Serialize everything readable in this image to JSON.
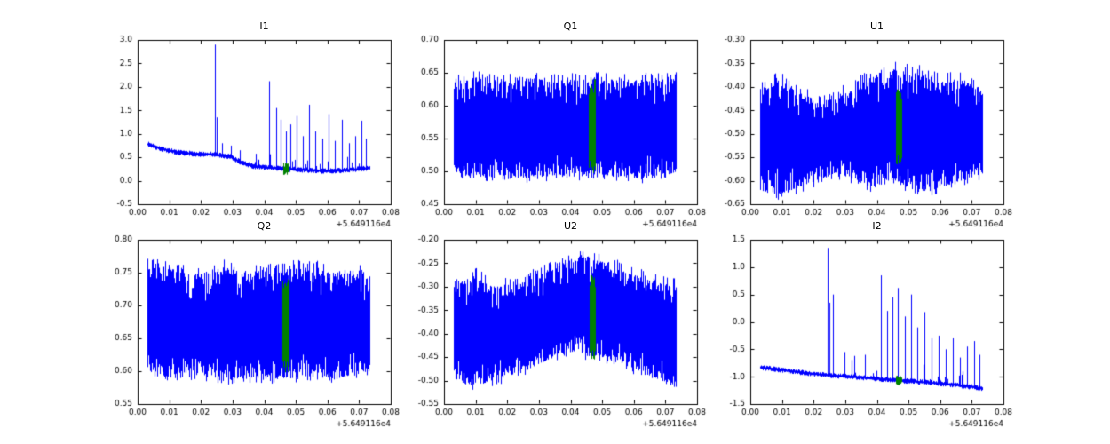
{
  "figure": {
    "background": "#ffffff",
    "line_color": "#0000ff",
    "highlight_color": "#008000",
    "x_offset_label": "+5.649116e4"
  },
  "chart_data": [
    {
      "id": "I1",
      "type": "line",
      "style": "spiky",
      "title": "I1",
      "ylabel": "I1",
      "xlim": [
        0,
        0.08
      ],
      "ylim": [
        -0.5,
        3.0
      ],
      "xticks": [
        0,
        0.01,
        0.02,
        0.03,
        0.04,
        0.05,
        0.06,
        0.07,
        0.08
      ],
      "yticks": [
        -0.5,
        0.0,
        0.5,
        1.0,
        1.5,
        2.0,
        2.5,
        3.0
      ],
      "xdec": 2,
      "ydec": 1,
      "x_offset": "+5.649116e4",
      "x_range": [
        0.003,
        0.0732
      ],
      "seed": 7,
      "baseline": [
        [
          0.003,
          0.78
        ],
        [
          0.008,
          0.67
        ],
        [
          0.013,
          0.6
        ],
        [
          0.019,
          0.57
        ],
        [
          0.024,
          0.56
        ],
        [
          0.029,
          0.52
        ],
        [
          0.033,
          0.38
        ],
        [
          0.037,
          0.3
        ],
        [
          0.043,
          0.27
        ],
        [
          0.05,
          0.24
        ],
        [
          0.058,
          0.21
        ],
        [
          0.065,
          0.22
        ],
        [
          0.0732,
          0.27
        ]
      ],
      "noise": 0.06,
      "comb_from": 0.036,
      "comb_prob": 0.12,
      "comb_amp": 0.25,
      "spikes": [
        [
          0.0243,
          2.9
        ],
        [
          0.0251,
          1.35
        ],
        [
          0.0268,
          0.8
        ],
        [
          0.0295,
          0.75
        ],
        [
          0.0322,
          0.65
        ],
        [
          0.0415,
          2.12
        ],
        [
          0.0437,
          1.55
        ],
        [
          0.0452,
          1.3
        ],
        [
          0.0468,
          1.05
        ],
        [
          0.0483,
          1.2
        ],
        [
          0.0502,
          1.38
        ],
        [
          0.0521,
          0.95
        ],
        [
          0.0543,
          1.62
        ],
        [
          0.0561,
          1.05
        ],
        [
          0.0585,
          0.9
        ],
        [
          0.0604,
          1.42
        ],
        [
          0.0622,
          0.85
        ],
        [
          0.0647,
          1.3
        ],
        [
          0.0668,
          0.8
        ],
        [
          0.0689,
          0.95
        ],
        [
          0.0706,
          1.28
        ],
        [
          0.0722,
          0.9
        ]
      ],
      "green": {
        "x": [
          0.0459,
          0.0478
        ],
        "half": 0.13
      }
    },
    {
      "id": "Q1",
      "type": "line",
      "style": "band",
      "title": "Q1",
      "ylabel": "Q1",
      "xlim": [
        0,
        0.08
      ],
      "ylim": [
        0.45,
        0.7
      ],
      "xticks": [
        0,
        0.01,
        0.02,
        0.03,
        0.04,
        0.05,
        0.06,
        0.07,
        0.08
      ],
      "yticks": [
        0.45,
        0.5,
        0.55,
        0.6,
        0.65,
        0.7
      ],
      "xdec": 2,
      "ydec": 2,
      "x_offset": "+5.649116e4",
      "x_range": [
        0.003,
        0.0732
      ],
      "seed": 11,
      "env_top": [
        [
          0.003,
          0.637
        ],
        [
          0.01,
          0.643
        ],
        [
          0.018,
          0.636
        ],
        [
          0.027,
          0.642
        ],
        [
          0.036,
          0.638
        ],
        [
          0.045,
          0.641
        ],
        [
          0.054,
          0.636
        ],
        [
          0.063,
          0.64
        ],
        [
          0.0732,
          0.641
        ]
      ],
      "env_bot": [
        [
          0.003,
          0.497
        ],
        [
          0.01,
          0.49
        ],
        [
          0.018,
          0.494
        ],
        [
          0.027,
          0.489
        ],
        [
          0.036,
          0.494
        ],
        [
          0.045,
          0.49
        ],
        [
          0.054,
          0.492
        ],
        [
          0.063,
          0.489
        ],
        [
          0.0732,
          0.497
        ]
      ],
      "tooth": 0.012,
      "green": {
        "x": [
          0.0458,
          0.0477
        ],
        "y": [
          0.497,
          0.643
        ]
      }
    },
    {
      "id": "U1",
      "type": "line",
      "style": "band",
      "title": "U1",
      "ylabel": "U1",
      "xlim": [
        0,
        0.08
      ],
      "ylim": [
        -0.65,
        -0.3
      ],
      "xticks": [
        0,
        0.01,
        0.02,
        0.03,
        0.04,
        0.05,
        0.06,
        0.07,
        0.08
      ],
      "yticks": [
        -0.65,
        -0.6,
        -0.55,
        -0.5,
        -0.45,
        -0.4,
        -0.35,
        -0.3
      ],
      "xdec": 2,
      "ydec": 2,
      "x_offset": "+5.649116e4",
      "x_range": [
        0.003,
        0.0732
      ],
      "seed": 13,
      "env_top": [
        [
          0.003,
          -0.405
        ],
        [
          0.009,
          -0.385
        ],
        [
          0.015,
          -0.41
        ],
        [
          0.021,
          -0.43
        ],
        [
          0.027,
          -0.425
        ],
        [
          0.033,
          -0.4
        ],
        [
          0.039,
          -0.375
        ],
        [
          0.046,
          -0.365
        ],
        [
          0.053,
          -0.37
        ],
        [
          0.06,
          -0.39
        ],
        [
          0.067,
          -0.385
        ],
        [
          0.0732,
          -0.415
        ]
      ],
      "env_bot": [
        [
          0.003,
          -0.615
        ],
        [
          0.009,
          -0.635
        ],
        [
          0.015,
          -0.615
        ],
        [
          0.021,
          -0.6
        ],
        [
          0.027,
          -0.585
        ],
        [
          0.033,
          -0.6
        ],
        [
          0.039,
          -0.615
        ],
        [
          0.046,
          -0.6
        ],
        [
          0.053,
          -0.625
        ],
        [
          0.06,
          -0.615
        ],
        [
          0.067,
          -0.6
        ],
        [
          0.0732,
          -0.585
        ]
      ],
      "tooth": 0.02,
      "green": {
        "x": [
          0.0459,
          0.0477
        ],
        "y": [
          -0.565,
          -0.405
        ]
      }
    },
    {
      "id": "Q2",
      "type": "line",
      "style": "band",
      "title": "Q2",
      "ylabel": "Q2",
      "xlim": [
        0,
        0.08
      ],
      "ylim": [
        0.55,
        0.8
      ],
      "xticks": [
        0,
        0.01,
        0.02,
        0.03,
        0.04,
        0.05,
        0.06,
        0.07,
        0.08
      ],
      "yticks": [
        0.55,
        0.6,
        0.65,
        0.7,
        0.75,
        0.8
      ],
      "xdec": 2,
      "ydec": 2,
      "x_offset": "+5.649116e4",
      "x_range": [
        0.003,
        0.0732
      ],
      "seed": 17,
      "env_top": [
        [
          0.003,
          0.762
        ],
        [
          0.01,
          0.755
        ],
        [
          0.018,
          0.748
        ],
        [
          0.027,
          0.758
        ],
        [
          0.036,
          0.75
        ],
        [
          0.045,
          0.755
        ],
        [
          0.054,
          0.76
        ],
        [
          0.063,
          0.748
        ],
        [
          0.0732,
          0.752
        ]
      ],
      "env_bot": [
        [
          0.003,
          0.603
        ],
        [
          0.01,
          0.588
        ],
        [
          0.018,
          0.594
        ],
        [
          0.027,
          0.585
        ],
        [
          0.036,
          0.59
        ],
        [
          0.045,
          0.587
        ],
        [
          0.054,
          0.592
        ],
        [
          0.063,
          0.588
        ],
        [
          0.0732,
          0.6
        ]
      ],
      "tooth": 0.012,
      "green": {
        "x": [
          0.0458,
          0.0477
        ],
        "y": [
          0.598,
          0.742
        ]
      }
    },
    {
      "id": "U2",
      "type": "line",
      "style": "band",
      "title": "U2",
      "ylabel": "U2",
      "xlim": [
        0,
        0.08
      ],
      "ylim": [
        -0.55,
        -0.2
      ],
      "xticks": [
        0,
        0.01,
        0.02,
        0.03,
        0.04,
        0.05,
        0.06,
        0.07,
        0.08
      ],
      "yticks": [
        -0.55,
        -0.5,
        -0.45,
        -0.4,
        -0.35,
        -0.3,
        -0.25,
        -0.2
      ],
      "xdec": 2,
      "ydec": 2,
      "x_offset": "+5.649116e4",
      "x_range": [
        0.003,
        0.0732
      ],
      "seed": 19,
      "env_top": [
        [
          0.003,
          -0.3
        ],
        [
          0.009,
          -0.275
        ],
        [
          0.015,
          -0.3
        ],
        [
          0.021,
          -0.295
        ],
        [
          0.027,
          -0.285
        ],
        [
          0.033,
          -0.265
        ],
        [
          0.039,
          -0.245
        ],
        [
          0.045,
          -0.232
        ],
        [
          0.051,
          -0.25
        ],
        [
          0.058,
          -0.27
        ],
        [
          0.065,
          -0.285
        ],
        [
          0.0732,
          -0.3
        ]
      ],
      "env_bot": [
        [
          0.003,
          -0.495
        ],
        [
          0.009,
          -0.515
        ],
        [
          0.015,
          -0.5
        ],
        [
          0.021,
          -0.49
        ],
        [
          0.027,
          -0.475
        ],
        [
          0.033,
          -0.455
        ],
        [
          0.039,
          -0.44
        ],
        [
          0.045,
          -0.445
        ],
        [
          0.051,
          -0.455
        ],
        [
          0.058,
          -0.47
        ],
        [
          0.065,
          -0.49
        ],
        [
          0.0732,
          -0.515
        ]
      ],
      "tooth": 0.02,
      "green": {
        "x": [
          0.0459,
          0.0477
        ],
        "y": [
          -0.455,
          -0.275
        ]
      }
    },
    {
      "id": "I2",
      "type": "line",
      "style": "spiky",
      "title": "I2",
      "ylabel": "I2",
      "xlim": [
        0,
        0.08
      ],
      "ylim": [
        -1.5,
        1.5
      ],
      "xticks": [
        0,
        0.01,
        0.02,
        0.03,
        0.04,
        0.05,
        0.06,
        0.07,
        0.08
      ],
      "yticks": [
        -1.5,
        -1.0,
        -0.5,
        0.0,
        0.5,
        1.0,
        1.5
      ],
      "xdec": 2,
      "ydec": 1,
      "x_offset": "+5.649116e4",
      "x_range": [
        0.003,
        0.0732
      ],
      "seed": 23,
      "baseline": [
        [
          0.003,
          -0.83
        ],
        [
          0.01,
          -0.88
        ],
        [
          0.017,
          -0.93
        ],
        [
          0.024,
          -0.97
        ],
        [
          0.031,
          -1.0
        ],
        [
          0.038,
          -1.03
        ],
        [
          0.045,
          -1.06
        ],
        [
          0.052,
          -1.09
        ],
        [
          0.059,
          -1.12
        ],
        [
          0.066,
          -1.16
        ],
        [
          0.0732,
          -1.21
        ]
      ],
      "noise": 0.05,
      "comb_from": 0.03,
      "comb_prob": 0.1,
      "comb_amp": 0.3,
      "spikes": [
        [
          0.0243,
          1.35
        ],
        [
          0.0251,
          0.35
        ],
        [
          0.0262,
          0.5
        ],
        [
          0.0298,
          -0.55
        ],
        [
          0.0329,
          -0.62
        ],
        [
          0.0362,
          -0.6
        ],
        [
          0.0412,
          0.85
        ],
        [
          0.0431,
          0.2
        ],
        [
          0.0448,
          0.45
        ],
        [
          0.0465,
          0.62
        ],
        [
          0.0488,
          0.1
        ],
        [
          0.0509,
          0.5
        ],
        [
          0.0528,
          -0.1
        ],
        [
          0.0551,
          0.18
        ],
        [
          0.0572,
          -0.3
        ],
        [
          0.0596,
          -0.25
        ],
        [
          0.0618,
          -0.5
        ],
        [
          0.0641,
          -0.3
        ],
        [
          0.0663,
          -0.65
        ],
        [
          0.0686,
          -0.45
        ],
        [
          0.0707,
          -0.35
        ],
        [
          0.0724,
          -0.6
        ]
      ],
      "green": {
        "x": [
          0.0459,
          0.0478
        ],
        "half": 0.09
      }
    }
  ]
}
